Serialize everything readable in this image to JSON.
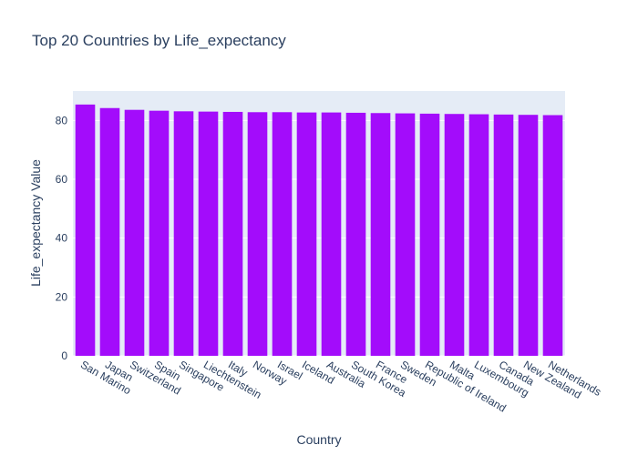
{
  "colors": {
    "bar": "#a30cfb",
    "plot_bg": "#e5ecf6",
    "grid": "#ffffff",
    "text": "#2a3f5f"
  },
  "chart_data": {
    "type": "bar",
    "title": "Top 20 Countries by Life_expectancy",
    "xlabel": "Country",
    "ylabel": "Life_expectancy Value",
    "ylim": [
      0,
      90
    ],
    "yticks": [
      0,
      20,
      40,
      60,
      80
    ],
    "grid": true,
    "categories": [
      "San Marino",
      "Japan",
      "Switzerland",
      "Spain",
      "Singapore",
      "Liechtenstein",
      "Italy",
      "Norway",
      "Israel",
      "Iceland",
      "Australia",
      "South Korea",
      "France",
      "Sweden",
      "Republic of Ireland",
      "Malta",
      "Luxembourg",
      "Canada",
      "New Zealand",
      "Netherlands"
    ],
    "values": [
      85.4,
      84.2,
      83.6,
      83.3,
      83.1,
      83.0,
      82.9,
      82.8,
      82.8,
      82.7,
      82.7,
      82.6,
      82.5,
      82.4,
      82.3,
      82.2,
      82.1,
      82.0,
      81.9,
      81.8
    ]
  }
}
